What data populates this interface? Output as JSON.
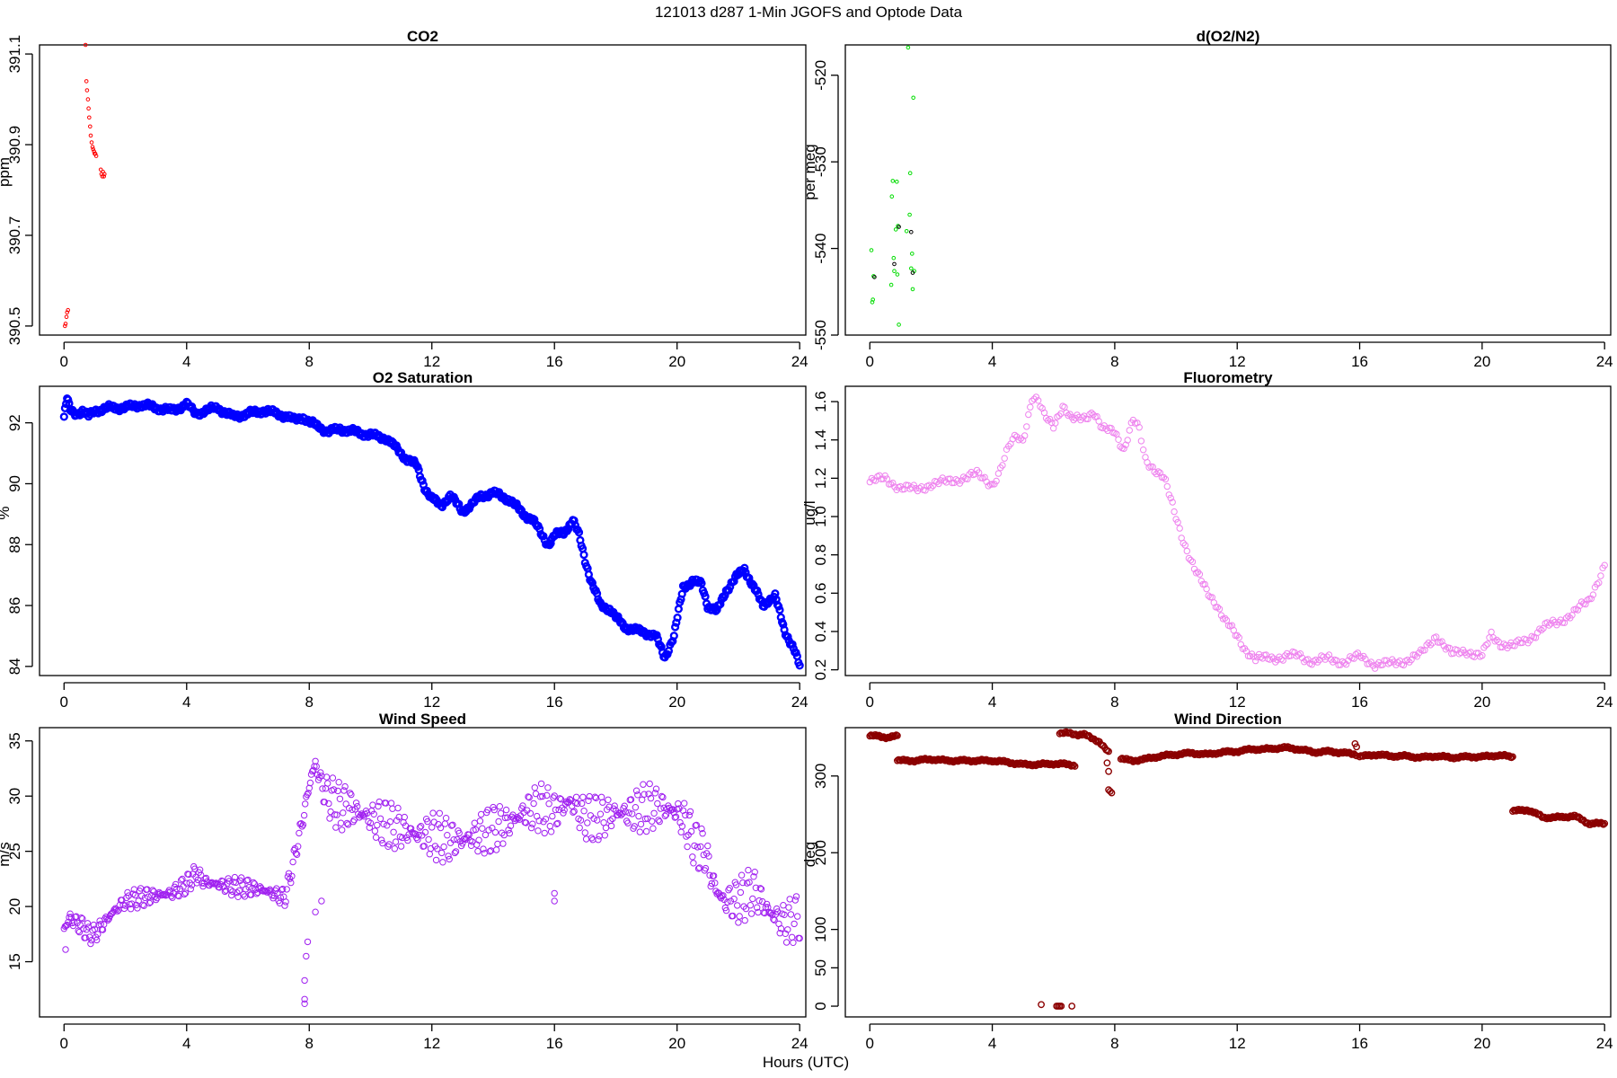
{
  "figure": {
    "title": "121013   d287   1-Min  JGOFS and Optode Data",
    "xlabel": "Hours (UTC)"
  },
  "chart_data": [
    {
      "id": "co2",
      "type": "scatter",
      "title": "CO2",
      "ylabel": "ppm",
      "color": "#ff0000",
      "marker": "small-circle",
      "xlim": [
        -0.8,
        24.2
      ],
      "ylim": [
        390.48,
        391.12
      ],
      "xticks": [
        0,
        4,
        8,
        12,
        16,
        20,
        24
      ],
      "xtick_labels": [
        "0",
        "4",
        "8",
        "12",
        "16",
        "20",
        "24"
      ],
      "yticks": [
        390.5,
        390.7,
        390.9,
        391.1
      ],
      "ytick_labels": [
        "390.5",
        "390.7",
        "390.9",
        "391.1"
      ],
      "points": [
        [
          0.03,
          390.5
        ],
        [
          0.05,
          390.505
        ],
        [
          0.08,
          390.52
        ],
        [
          0.1,
          390.53
        ],
        [
          0.13,
          390.535
        ],
        [
          0.7,
          391.12
        ],
        [
          0.73,
          391.04
        ],
        [
          0.75,
          391.02
        ],
        [
          0.78,
          391.0
        ],
        [
          0.8,
          390.98
        ],
        [
          0.82,
          390.96
        ],
        [
          0.85,
          390.94
        ],
        [
          0.87,
          390.92
        ],
        [
          0.9,
          390.905
        ],
        [
          0.93,
          390.895
        ],
        [
          0.95,
          390.89
        ],
        [
          0.98,
          390.885
        ],
        [
          1.0,
          390.88
        ],
        [
          1.02,
          390.88
        ],
        [
          1.05,
          390.875
        ],
        [
          1.2,
          390.845
        ],
        [
          1.22,
          390.835
        ],
        [
          1.25,
          390.83
        ],
        [
          1.27,
          390.84
        ],
        [
          1.3,
          390.83
        ],
        [
          1.32,
          390.835
        ]
      ]
    },
    {
      "id": "o2n2",
      "type": "scatter",
      "title": "d(O2/N2)",
      "ylabel": "per meg",
      "color": "#00dd00",
      "marker": "small-circle",
      "xlim": [
        -0.8,
        24.2
      ],
      "ylim": [
        -550,
        -516.5
      ],
      "xticks": [
        0,
        4,
        8,
        12,
        16,
        20,
        24
      ],
      "xtick_labels": [
        "0",
        "4",
        "8",
        "12",
        "16",
        "20",
        "24"
      ],
      "yticks": [
        -550,
        -540,
        -530,
        -520
      ],
      "ytick_labels": [
        "-550",
        "-540",
        "-530",
        "-520"
      ],
      "points": [
        [
          0.05,
          -540.2
        ],
        [
          0.08,
          -546.2
        ],
        [
          0.1,
          -545.9
        ],
        [
          0.12,
          -543.2
        ],
        [
          0.7,
          -544.2
        ],
        [
          0.72,
          -534.0
        ],
        [
          0.75,
          -532.2
        ],
        [
          0.78,
          -541.1
        ],
        [
          0.8,
          -542.6
        ],
        [
          0.85,
          -537.8
        ],
        [
          0.88,
          -532.3
        ],
        [
          0.9,
          -543.0
        ],
        [
          0.92,
          -537.4
        ],
        [
          0.95,
          -548.8
        ],
        [
          1.2,
          -538.0
        ],
        [
          1.25,
          -516.8
        ],
        [
          1.3,
          -536.1
        ],
        [
          1.32,
          -531.3
        ],
        [
          1.35,
          -542.3
        ],
        [
          1.38,
          -540.6
        ],
        [
          1.4,
          -544.7
        ],
        [
          1.42,
          -522.6
        ],
        [
          1.45,
          -542.6
        ]
      ],
      "dark_points": [
        [
          0.15,
          -543.3
        ],
        [
          0.8,
          -541.8
        ],
        [
          0.95,
          -537.5
        ],
        [
          1.35,
          -538.1
        ],
        [
          1.4,
          -542.8
        ]
      ],
      "dark_color": "#000000"
    },
    {
      "id": "o2sat",
      "type": "line",
      "title": "O2 Saturation",
      "ylabel": "%",
      "color": "#0000ff",
      "marker": "circle-dense",
      "xlim": [
        -0.8,
        24.2
      ],
      "ylim": [
        83.7,
        93.2
      ],
      "xticks": [
        0,
        4,
        8,
        12,
        16,
        20,
        24
      ],
      "xtick_labels": [
        "0",
        "4",
        "8",
        "12",
        "16",
        "20",
        "24"
      ],
      "yticks": [
        84,
        86,
        88,
        90,
        92
      ],
      "ytick_labels": [
        "84",
        "86",
        "88",
        "90",
        "92"
      ],
      "x": [
        0,
        0.1,
        0.2,
        0.4,
        0.6,
        0.8,
        1.0,
        1.5,
        2.0,
        2.5,
        3.0,
        3.5,
        4.0,
        4.3,
        4.6,
        5.0,
        5.5,
        6.0,
        6.5,
        7.0,
        7.5,
        7.8,
        8.0,
        8.3,
        8.6,
        9.0,
        9.5,
        10.0,
        10.5,
        11.0,
        11.2,
        11.5,
        11.8,
        12.0,
        12.3,
        12.6,
        13.0,
        13.3,
        13.6,
        14.0,
        14.5,
        15.0,
        15.3,
        15.6,
        15.8,
        16.0,
        16.3,
        16.6,
        16.8,
        17.0,
        17.2,
        17.5,
        17.8,
        18.0,
        18.3,
        18.6,
        19.0,
        19.3,
        19.6,
        19.9,
        20.2,
        20.5,
        20.8,
        21.0,
        21.3,
        21.6,
        21.9,
        22.2,
        22.5,
        22.8,
        23.0,
        23.2,
        23.5,
        23.8,
        24.0
      ],
      "y": [
        92.2,
        92.8,
        92.4,
        92.3,
        92.4,
        92.2,
        92.4,
        92.5,
        92.5,
        92.6,
        92.5,
        92.4,
        92.6,
        92.3,
        92.4,
        92.5,
        92.2,
        92.3,
        92.4,
        92.3,
        92.1,
        92.2,
        92.0,
        91.9,
        91.7,
        91.8,
        91.7,
        91.6,
        91.5,
        91.0,
        90.8,
        90.6,
        89.8,
        89.5,
        89.3,
        89.6,
        89.1,
        89.3,
        89.6,
        89.7,
        89.5,
        89.0,
        88.8,
        88.3,
        88.0,
        88.3,
        88.4,
        88.8,
        88.3,
        87.5,
        86.8,
        86.0,
        85.9,
        85.6,
        85.3,
        85.2,
        85.1,
        85.0,
        84.3,
        85.0,
        86.6,
        86.8,
        86.7,
        86.0,
        85.8,
        86.5,
        86.9,
        87.2,
        86.6,
        86.0,
        86.2,
        86.3,
        85.2,
        84.6,
        84.0
      ]
    },
    {
      "id": "fluor",
      "type": "scatter",
      "title": "Fluorometry",
      "ylabel": "ug/l",
      "color": "#ee82ee",
      "marker": "circle-open",
      "xlim": [
        -0.8,
        24.2
      ],
      "ylim": [
        0.17,
        1.68
      ],
      "xticks": [
        0,
        4,
        8,
        12,
        16,
        20,
        24
      ],
      "xtick_labels": [
        "0",
        "4",
        "8",
        "12",
        "16",
        "20",
        "24"
      ],
      "yticks": [
        0.2,
        0.4,
        0.6,
        0.8,
        1.0,
        1.2,
        1.4,
        1.6
      ],
      "ytick_labels": [
        "0.2",
        "0.4",
        "0.6",
        "0.8",
        "1.0",
        "1.2",
        "1.4",
        "1.6"
      ],
      "x": [
        0,
        0.5,
        1.0,
        1.5,
        2.0,
        2.5,
        3.0,
        3.5,
        4.0,
        4.2,
        4.4,
        4.6,
        4.8,
        5.0,
        5.3,
        5.5,
        5.7,
        6.0,
        6.3,
        6.6,
        7.0,
        7.3,
        7.6,
        8.0,
        8.3,
        8.6,
        8.8,
        9.0,
        9.3,
        9.6,
        10.0,
        10.3,
        10.6,
        11.0,
        11.3,
        11.6,
        12.0,
        12.3,
        12.6,
        13.0,
        13.5,
        14.0,
        14.5,
        15.0,
        15.5,
        16.0,
        16.5,
        17.0,
        17.5,
        18.0,
        18.5,
        19.0,
        19.5,
        20.0,
        20.3,
        20.6,
        21.0,
        21.5,
        22.0,
        22.5,
        23.0,
        23.5,
        24.0
      ],
      "y": [
        1.18,
        1.2,
        1.15,
        1.14,
        1.17,
        1.18,
        1.2,
        1.22,
        1.17,
        1.22,
        1.3,
        1.38,
        1.42,
        1.4,
        1.62,
        1.6,
        1.52,
        1.48,
        1.58,
        1.5,
        1.52,
        1.55,
        1.45,
        1.45,
        1.35,
        1.5,
        1.45,
        1.3,
        1.25,
        1.2,
        1.0,
        0.85,
        0.72,
        0.62,
        0.55,
        0.45,
        0.38,
        0.3,
        0.25,
        0.27,
        0.26,
        0.28,
        0.24,
        0.26,
        0.24,
        0.27,
        0.23,
        0.23,
        0.25,
        0.28,
        0.38,
        0.28,
        0.3,
        0.27,
        0.38,
        0.34,
        0.32,
        0.36,
        0.42,
        0.45,
        0.5,
        0.56,
        0.75
      ]
    },
    {
      "id": "wspd",
      "type": "scatter",
      "title": "Wind Speed",
      "ylabel": "m/s",
      "color": "#a020f0",
      "marker": "circle-open",
      "xlim": [
        -0.8,
        24.2
      ],
      "ylim": [
        10.0,
        36.2
      ],
      "xticks": [
        0,
        4,
        8,
        12,
        16,
        20,
        24
      ],
      "xtick_labels": [
        "0",
        "4",
        "8",
        "12",
        "16",
        "20",
        "24"
      ],
      "yticks": [
        15,
        20,
        25,
        30,
        35
      ],
      "ytick_labels": [
        "15",
        "20",
        "25",
        "30",
        "35"
      ],
      "x": [
        0,
        0.2,
        0.4,
        0.6,
        0.8,
        1.0,
        1.3,
        1.6,
        2.0,
        2.5,
        3.0,
        3.5,
        4.0,
        4.3,
        4.6,
        5.0,
        5.5,
        6.0,
        6.5,
        7.0,
        7.2,
        7.4,
        7.6,
        7.8,
        8.0,
        8.2,
        8.4,
        8.6,
        8.8,
        9.0,
        9.3,
        9.6,
        10.0,
        10.5,
        11.0,
        11.5,
        12.0,
        12.5,
        13.0,
        13.5,
        14.0,
        14.5,
        15.0,
        15.5,
        16.0,
        16.5,
        17.0,
        17.5,
        18.0,
        18.5,
        19.0,
        19.5,
        20.0,
        20.3,
        20.6,
        20.9,
        21.2,
        21.5,
        22.0,
        22.5,
        23.0,
        23.5,
        24.0
      ],
      "y": [
        18.0,
        19.0,
        18.5,
        18.2,
        17.5,
        17.5,
        18.5,
        19.5,
        20.5,
        20.8,
        21.0,
        21.2,
        22.0,
        23.0,
        22.2,
        22.0,
        21.8,
        21.7,
        21.5,
        21.0,
        20.8,
        23.0,
        25.5,
        28.0,
        31.0,
        33.0,
        31.0,
        30.0,
        29.5,
        29.0,
        29.0,
        28.5,
        28.0,
        27.5,
        27.0,
        26.5,
        26.5,
        26.0,
        26.0,
        26.5,
        27.0,
        27.5,
        28.5,
        29.0,
        28.5,
        29.5,
        28.0,
        28.0,
        28.5,
        28.5,
        29.0,
        29.0,
        28.5,
        27.5,
        25.5,
        25.0,
        22.0,
        20.5,
        20.5,
        21.5,
        19.5,
        18.5,
        19.0
      ],
      "outliers": [
        [
          0.05,
          16.1
        ],
        [
          7.85,
          11.2
        ],
        [
          7.85,
          11.6
        ],
        [
          7.85,
          13.3
        ],
        [
          7.9,
          15.5
        ],
        [
          7.95,
          16.8
        ],
        [
          8.2,
          19.5
        ],
        [
          8.4,
          20.5
        ],
        [
          16.0,
          20.5
        ],
        [
          16.0,
          21.2
        ]
      ]
    },
    {
      "id": "wdir",
      "type": "scatter",
      "title": "Wind Direction",
      "ylabel": "deg",
      "color": "#8b0000",
      "marker": "circle-open",
      "xlim": [
        -0.8,
        24.2
      ],
      "ylim": [
        -14,
        363
      ],
      "xticks": [
        0,
        4,
        8,
        12,
        16,
        20,
        24
      ],
      "xtick_labels": [
        "0",
        "4",
        "8",
        "12",
        "16",
        "20",
        "24"
      ],
      "yticks": [
        0,
        50,
        100,
        200,
        300
      ],
      "ytick_labels": [
        "0",
        "50",
        "100",
        "200",
        "300"
      ],
      "segments": [
        {
          "x": [
            0,
            0.3,
            0.6,
            0.9
          ],
          "y": [
            352,
            352,
            350,
            352
          ]
        },
        {
          "x": [
            0.9,
            1.5,
            2.0,
            2.5,
            3.0,
            3.5,
            4.0,
            4.5,
            5.0,
            5.5,
            6.0,
            6.5,
            6.7
          ],
          "y": [
            320,
            320,
            322,
            320,
            320,
            320,
            320,
            318,
            315,
            315,
            316,
            315,
            314
          ]
        },
        {
          "x": [
            6.2,
            6.5,
            6.8,
            7.0,
            7.2,
            7.5,
            7.8
          ],
          "y": [
            355,
            356,
            354,
            354,
            350,
            345,
            330
          ]
        },
        {
          "x": [
            8.2,
            8.6,
            9.0,
            9.5,
            10.0,
            10.5,
            11.0,
            11.5,
            12.0,
            12.5,
            13.0,
            13.5,
            14.0,
            14.5,
            15.0,
            15.5,
            15.9
          ],
          "y": [
            322,
            320,
            322,
            326,
            328,
            330,
            328,
            331,
            332,
            335,
            335,
            337,
            335,
            331,
            332,
            330,
            328
          ]
        },
        {
          "x": [
            16.0,
            16.5,
            17.0,
            17.5,
            18.0,
            18.5,
            19.0,
            19.5,
            20.0,
            20.5,
            21.0
          ],
          "y": [
            325,
            328,
            326,
            326,
            324,
            326,
            324,
            325,
            325,
            327,
            325
          ]
        },
        {
          "x": [
            21.0,
            21.5,
            22.0,
            22.5,
            23.0,
            23.5,
            24.0
          ],
          "y": [
            254,
            256,
            246,
            246,
            248,
            238,
            238
          ]
        }
      ],
      "outliers": [
        [
          15.85,
          342
        ],
        [
          15.9,
          338
        ],
        [
          7.75,
          317
        ],
        [
          7.8,
          306
        ],
        [
          7.8,
          282
        ],
        [
          7.85,
          280
        ],
        [
          7.9,
          278
        ],
        [
          5.6,
          2
        ],
        [
          6.1,
          0
        ],
        [
          6.15,
          0
        ],
        [
          6.2,
          0
        ],
        [
          6.25,
          0
        ],
        [
          6.6,
          0
        ]
      ]
    }
  ]
}
